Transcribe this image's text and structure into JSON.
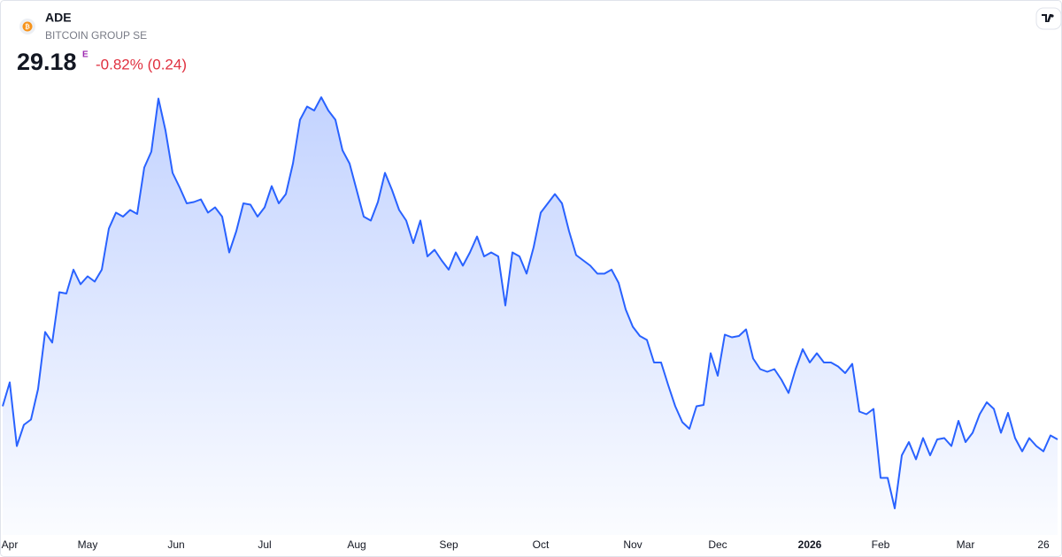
{
  "chart_data": {
    "type": "area",
    "symbol": "ADE",
    "description": "BITCOIN GROUP SE",
    "price": "29.18",
    "price_flag": "E",
    "change": "-0.82% (0.24)",
    "color": "#2962ff",
    "xlim": [
      0,
      148
    ],
    "ylim": [
      22,
      56
    ],
    "xticks": [
      {
        "value": 1,
        "label": "Apr"
      },
      {
        "value": 12,
        "label": "May"
      },
      {
        "value": 24.5,
        "label": "Jun"
      },
      {
        "value": 37,
        "label": "Jul"
      },
      {
        "value": 50,
        "label": "Aug"
      },
      {
        "value": 63,
        "label": "Sep"
      },
      {
        "value": 76,
        "label": "Oct"
      },
      {
        "value": 89,
        "label": "Nov"
      },
      {
        "value": 101,
        "label": "Dec"
      },
      {
        "value": 114,
        "label": "2026"
      },
      {
        "value": 124,
        "label": "Feb"
      },
      {
        "value": 136,
        "label": "Mar"
      },
      {
        "value": 147,
        "label": "26"
      }
    ],
    "values": [
      31.7,
      33.5,
      28.7,
      30.3,
      30.7,
      33.0,
      37.3,
      36.5,
      40.3,
      40.2,
      42.0,
      40.9,
      41.5,
      41.1,
      42.0,
      45.1,
      46.3,
      46.0,
      46.5,
      46.2,
      49.7,
      50.9,
      54.9,
      52.5,
      49.3,
      48.2,
      47.0,
      47.1,
      47.3,
      46.3,
      46.7,
      46.0,
      43.3,
      44.9,
      47.0,
      46.9,
      46.0,
      46.7,
      48.3,
      47.0,
      47.7,
      50.0,
      53.3,
      54.3,
      54.0,
      55.0,
      54.0,
      53.3,
      51.0,
      50.0,
      48.0,
      46.0,
      45.7,
      47.1,
      49.3,
      48.0,
      46.5,
      45.7,
      44.0,
      45.7,
      43.0,
      43.5,
      42.7,
      42.0,
      43.3,
      42.3,
      43.3,
      44.5,
      43.0,
      43.3,
      43.0,
      39.3,
      43.3,
      43.0,
      41.7,
      43.7,
      46.3,
      47.0,
      47.7,
      47.0,
      44.9,
      43.1,
      42.7,
      42.3,
      41.7,
      41.7,
      42.0,
      41.0,
      39.0,
      37.7,
      37.0,
      36.7,
      35.0,
      35.0,
      33.3,
      31.7,
      30.5,
      30.0,
      31.7,
      31.8,
      35.7,
      34.0,
      37.1,
      36.9,
      37.0,
      37.5,
      35.3,
      34.5,
      34.3,
      34.5,
      33.7,
      32.7,
      34.5,
      36.0,
      35.0,
      35.7,
      35.0,
      35.0,
      34.7,
      34.2,
      34.9,
      31.3,
      31.1,
      31.5,
      26.3,
      26.3,
      24.0,
      28.0,
      29.0,
      27.7,
      29.3,
      28.0,
      29.2,
      29.3,
      28.7,
      30.6,
      29.0,
      29.7,
      31.1,
      32.0,
      31.5,
      29.7,
      31.2,
      29.3,
      28.3,
      29.3,
      28.7,
      28.3,
      29.5,
      29.2
    ]
  }
}
